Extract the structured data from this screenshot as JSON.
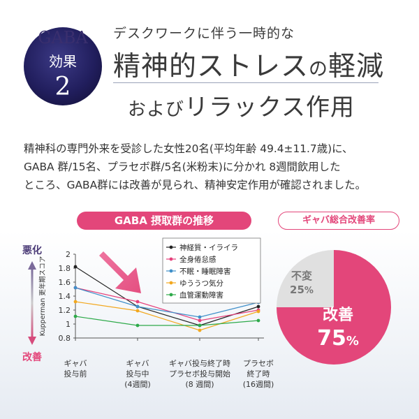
{
  "badge": {
    "top": "GABA",
    "line1": "効果",
    "line2": "2"
  },
  "header": {
    "pre": "デスクワークに伴う一時的な",
    "main_a": "精神的ストレス",
    "main_b": "の",
    "main_c": "軽減",
    "main2_a": "および",
    "main2_b": "リラックス作用"
  },
  "description": [
    "精神科の専門外来を受診した女性20名(平均年齢 49.4±11.7歳)に、",
    "GABA 群/15名、プラセボ群/5名(米粉末)に分かれ 8週間飲用した",
    "ところ、GABA群には改善が見られ、精神安定作用が確認されました。"
  ],
  "chart_title": "GABA 摂取群の推移",
  "pie_title": "ギャバ総合改善率",
  "labels": {
    "worse": "悪化",
    "better": "改善"
  },
  "chart_data": [
    {
      "type": "line",
      "title": "GABA 摂取群の推移",
      "ylabel": "Kupperman 更年期スコア",
      "categories": [
        [
          "ギャバ",
          "投与前"
        ],
        [
          "ギャバ",
          "投与中",
          "(4週間)"
        ],
        [
          "ギャバ投与終了時",
          "プラセボ投与開始",
          "(8 週間)"
        ],
        [
          "プラセボ",
          "終了時",
          "(16週間)"
        ]
      ],
      "yticks": [
        "2",
        "1.8",
        "1.6",
        "1.4",
        "1.2",
        "1",
        "0.8"
      ],
      "ylim": [
        0.8,
        2
      ],
      "legend_position": "top-right",
      "series": [
        {
          "name": "神経質・イライラ",
          "color": "#222222",
          "values": [
            1.82,
            1.25,
            0.98,
            1.25
          ]
        },
        {
          "name": "全身倦怠感",
          "color": "#e5407b",
          "values": [
            1.52,
            1.32,
            1.05,
            1.2
          ]
        },
        {
          "name": "不眠・睡眠障害",
          "color": "#3f8fc9",
          "values": [
            1.52,
            1.25,
            1.1,
            1.31
          ]
        },
        {
          "name": "ゆううつ気分",
          "color": "#f2a81f",
          "values": [
            1.32,
            1.19,
            0.91,
            1.18
          ]
        },
        {
          "name": "血管運動障害",
          "color": "#2eaa4a",
          "values": [
            1.11,
            0.98,
            0.98,
            1.05
          ]
        }
      ]
    },
    {
      "type": "pie",
      "title": "ギャバ総合改善率",
      "slices": [
        {
          "label": "改善",
          "value": 75,
          "display": "75",
          "unit": "%",
          "color": "#e3467a"
        },
        {
          "label": "不変",
          "value": 25,
          "display": "25",
          "unit": "%",
          "color": "#e0e0e0"
        }
      ]
    }
  ]
}
